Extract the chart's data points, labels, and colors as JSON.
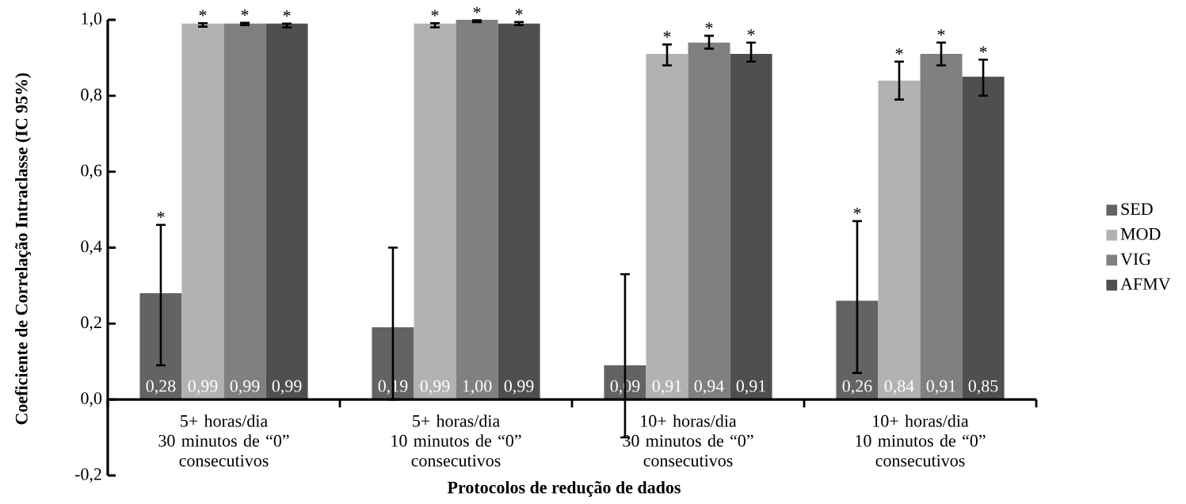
{
  "chart_data": {
    "type": "bar",
    "xlabel": "Protocolos de redução de dados",
    "ylabel": "Coeficiente de Correlação Intraclasse (IC 95%)",
    "categories": [
      "5+ horas/dia\n30 minutos de “0”\nconsecutivos",
      "5+ horas/dia\n10 minutos de “0”\nconsecutivos",
      "10+ horas/dia\n30 minutos de “0”\nconsecutivos",
      "10+ horas/dia\n10 minutos de “0”\nconsecutivos"
    ],
    "series": [
      {
        "name": "SED",
        "color": "#636363",
        "values": [
          0.28,
          0.19,
          0.09,
          0.26
        ],
        "value_labels": [
          "0,28",
          "0,19",
          "0,09",
          "0,26"
        ],
        "errors": [
          [
            0.09,
            0.46
          ],
          [
            0.0,
            0.4
          ],
          [
            -0.1,
            0.33
          ],
          [
            0.07,
            0.47
          ]
        ]
      },
      {
        "name": "MOD",
        "color": "#b2b2b2",
        "values": [
          0.99,
          0.99,
          0.91,
          0.84
        ],
        "value_labels": [
          "0,99",
          "0,99",
          "0,91",
          "0,84"
        ],
        "errors": [
          [
            0.982,
            0.991
          ],
          [
            0.98,
            0.991
          ],
          [
            0.88,
            0.935
          ],
          [
            0.79,
            0.89
          ]
        ]
      },
      {
        "name": "VIG",
        "color": "#808080",
        "values": [
          0.99,
          1.0,
          0.94,
          0.91
        ],
        "value_labels": [
          "0,99",
          "1,00",
          "0,94",
          "0,91"
        ],
        "errors": [
          [
            0.986,
            0.992
          ],
          [
            0.994,
            0.999
          ],
          [
            0.924,
            0.958
          ],
          [
            0.88,
            0.94
          ]
        ]
      },
      {
        "name": "AFMV",
        "color": "#4f4f4f",
        "values": [
          0.99,
          0.99,
          0.91,
          0.85
        ],
        "value_labels": [
          "0,99",
          "0,99",
          "0,91",
          "0,85"
        ],
        "errors": [
          [
            0.98,
            0.99
          ],
          [
            0.986,
            0.994
          ],
          [
            0.89,
            0.94
          ],
          [
            0.8,
            0.895
          ]
        ]
      }
    ],
    "ylim": [
      -0.2,
      1.0
    ],
    "yticks": [
      {
        "value": -0.2,
        "label": "-0,2"
      },
      {
        "value": 0.0,
        "label": "0,0"
      },
      {
        "value": 0.2,
        "label": "0,2"
      },
      {
        "value": 0.4,
        "label": "0,4"
      },
      {
        "value": 0.6,
        "label": "0,6"
      },
      {
        "value": 0.8,
        "label": "0,8"
      },
      {
        "value": 1.0,
        "label": "1,0"
      }
    ],
    "annotations": [
      "*",
      "*",
      "*",
      "*",
      "*",
      "*",
      "*",
      "*",
      "*",
      "*",
      "*",
      "*",
      "*",
      "*"
    ],
    "legend": "right",
    "grid": false
  }
}
